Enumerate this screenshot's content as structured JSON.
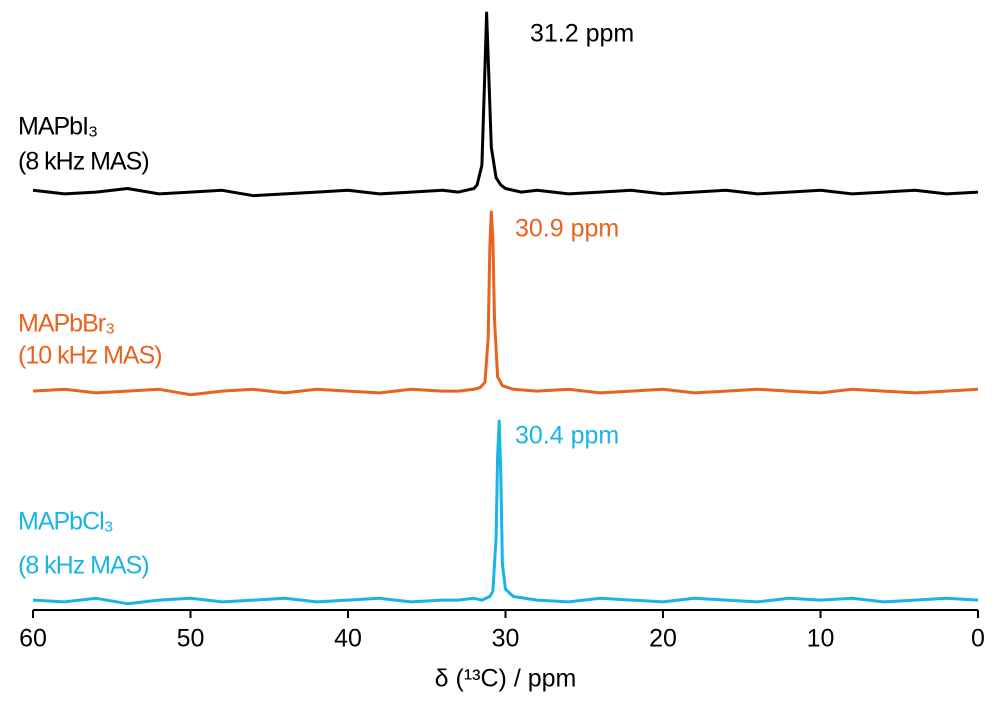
{
  "chart_data": [
    {
      "type": "line",
      "xlim": [
        60,
        0
      ],
      "ylim": [
        -10,
        100
      ],
      "peak_label": "31.2 ppm",
      "annotation": "(8 kHz MAS)",
      "series": [
        {
          "name": "MAPbI₃",
          "color": "#000000",
          "x": [
            60,
            58,
            56,
            54,
            52,
            50,
            48,
            46,
            44,
            42,
            40,
            38,
            36,
            34,
            33,
            32,
            31.8,
            31.5,
            31.3,
            31.2,
            31.1,
            30.9,
            30.6,
            30.3,
            30,
            29,
            28,
            26,
            24,
            22,
            20,
            18,
            16,
            14,
            12,
            10,
            8,
            6,
            4,
            2,
            0
          ],
          "values": [
            1,
            -1,
            0,
            2,
            -1,
            0,
            1,
            -2,
            -1,
            0,
            1,
            -1,
            0,
            1,
            0,
            2,
            4,
            15,
            70,
            100,
            75,
            25,
            8,
            4,
            2,
            0,
            1,
            -1,
            0,
            1,
            -1,
            0,
            1,
            -1,
            0,
            1,
            -1,
            0,
            1,
            -1,
            0
          ]
        }
      ]
    },
    {
      "type": "line",
      "xlim": [
        60,
        0
      ],
      "ylim": [
        -10,
        100
      ],
      "peak_label": "30.9 ppm",
      "annotation": "(10 kHz MAS)",
      "series": [
        {
          "name": "MAPbBr₃",
          "color": "#e8641e",
          "x": [
            60,
            58,
            56,
            54,
            52,
            50,
            48,
            46,
            44,
            42,
            40,
            38,
            36,
            34,
            33,
            32,
            31.6,
            31.3,
            31.1,
            31.0,
            30.9,
            30.8,
            30.7,
            30.5,
            30.2,
            29.5,
            28,
            26,
            24,
            22,
            20,
            18,
            16,
            14,
            12,
            10,
            8,
            6,
            4,
            2,
            0
          ],
          "values": [
            0,
            1,
            -1,
            0,
            1,
            -2,
            0,
            1,
            -1,
            1,
            0,
            -1,
            1,
            0,
            0,
            1,
            2,
            5,
            30,
            80,
            100,
            85,
            40,
            8,
            3,
            1,
            0,
            1,
            -1,
            0,
            1,
            -1,
            0,
            1,
            0,
            -1,
            1,
            0,
            -1,
            0,
            1
          ]
        }
      ]
    },
    {
      "type": "line",
      "xlim": [
        60,
        0
      ],
      "ylim": [
        -10,
        100
      ],
      "peak_label": "30.4 ppm",
      "annotation": "(8 kHz MAS)",
      "x_label": "δ (¹³C) / ppm",
      "xticks": [
        60,
        50,
        40,
        30,
        20,
        10,
        0
      ],
      "series": [
        {
          "name": "MAPbCl₃",
          "color": "#1ab4e6",
          "x": [
            60,
            58,
            56,
            54,
            52,
            50,
            48,
            46,
            44,
            42,
            40,
            38,
            36,
            34,
            33,
            32,
            31.5,
            31,
            30.8,
            30.6,
            30.5,
            30.4,
            30.3,
            30.2,
            30,
            29.5,
            28,
            26,
            24,
            22,
            20,
            18,
            16,
            14,
            12,
            10,
            8,
            6,
            4,
            2,
            0
          ],
          "values": [
            0,
            -1,
            1,
            -2,
            0,
            1,
            -1,
            0,
            1,
            -1,
            0,
            1,
            -1,
            0,
            0,
            1,
            0,
            2,
            5,
            35,
            80,
            100,
            70,
            20,
            6,
            2,
            0,
            -1,
            1,
            0,
            -1,
            1,
            0,
            -1,
            1,
            0,
            1,
            -1,
            0,
            1,
            0
          ]
        }
      ]
    }
  ]
}
